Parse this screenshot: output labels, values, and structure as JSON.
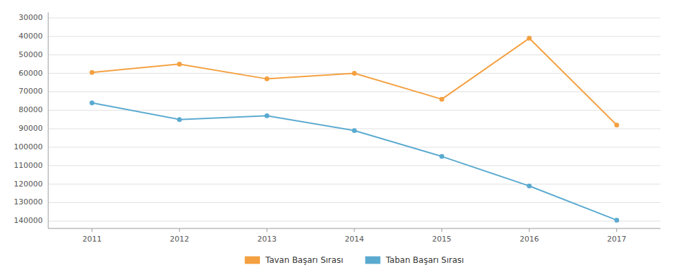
{
  "chart_data": {
    "type": "line",
    "x": [
      2011,
      2012,
      2013,
      2014,
      2015,
      2016,
      2017
    ],
    "xlim": [
      2010.5,
      2017.5
    ],
    "xticks": [
      2011,
      2012,
      2013,
      2014,
      2015,
      2016,
      2017
    ],
    "ylim": [
      144000,
      27000
    ],
    "yticks": [
      30000,
      40000,
      50000,
      60000,
      70000,
      80000,
      90000,
      100000,
      110000,
      120000,
      130000,
      140000
    ],
    "grid": true,
    "legend": "bottom",
    "marker": "circle",
    "series": [
      {
        "name": "Tavan Başarı Sırası",
        "color": "#f4a040",
        "values": [
          59500,
          55000,
          63000,
          60000,
          74000,
          41000,
          88000
        ]
      },
      {
        "name": "Taban Başarı Sırası",
        "color": "#5aaad0",
        "values": [
          76000,
          85000,
          83000,
          91000,
          105000,
          121000,
          139500
        ]
      }
    ]
  }
}
